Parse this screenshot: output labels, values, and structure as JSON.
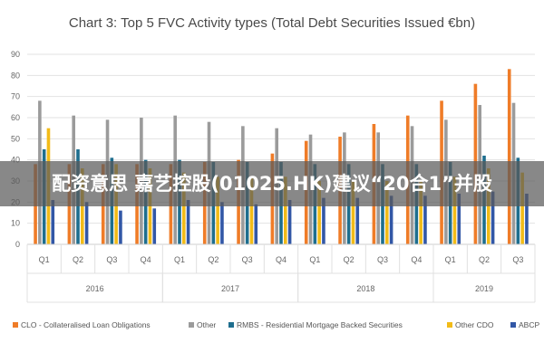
{
  "banner": {
    "text": "配资意思 嘉艺控股(01025.HK)建议“20合1”并股"
  },
  "colors": {
    "clo": "#ef7c28",
    "other": "#9b9b9b",
    "rmbs": "#1e6e8e",
    "other_cdo": "#f2bb18",
    "abcp": "#3257a6",
    "grid": "#e2e2e2",
    "title": "#4a4a4a"
  },
  "chart_data": {
    "type": "bar",
    "title": "Chart 3: Top 5 FVC Activity types (Total Debt Securities Issued €bn)",
    "xlabel": "",
    "ylabel": "",
    "ylim": [
      0,
      90
    ],
    "yticks": [
      0,
      10,
      20,
      30,
      40,
      50,
      60,
      70,
      80,
      90
    ],
    "grid": true,
    "legend_position": "bottom",
    "categories": [
      "Q1",
      "Q2",
      "Q3",
      "Q4",
      "Q1",
      "Q2",
      "Q3",
      "Q4",
      "Q1",
      "Q2",
      "Q3",
      "Q4",
      "Q1",
      "Q2",
      "Q3"
    ],
    "groups": [
      {
        "label": "2016",
        "start": 0,
        "end": 3
      },
      {
        "label": "2017",
        "start": 4,
        "end": 7
      },
      {
        "label": "2018",
        "start": 8,
        "end": 11
      },
      {
        "label": "2019",
        "start": 12,
        "end": 14
      }
    ],
    "series": [
      {
        "name": "CLO - Collateralised Loan Obligations",
        "color_key": "clo",
        "values": [
          38,
          38,
          38,
          38,
          38,
          39,
          40,
          43,
          49,
          51,
          57,
          61,
          68,
          76,
          83
        ]
      },
      {
        "name": "Other",
        "color_key": "other",
        "values": [
          68,
          61,
          59,
          60,
          61,
          58,
          56,
          55,
          52,
          53,
          53,
          56,
          59,
          66,
          67
        ]
      },
      {
        "name": "RMBS - Residential Mortgage Backed Securities",
        "color_key": "rmbs",
        "values": [
          45,
          45,
          41,
          40,
          40,
          39,
          39,
          39,
          38,
          38,
          38,
          38,
          39,
          42,
          41
        ]
      },
      {
        "name": "Other CDO",
        "color_key": "other_cdo",
        "values": [
          55,
          36,
          38,
          36,
          34,
          32,
          32,
          32,
          30,
          30,
          30,
          30,
          32,
          36,
          34
        ]
      },
      {
        "name": "ABCP",
        "color_key": "abcp",
        "values": [
          21,
          20,
          16,
          17,
          21,
          20,
          19,
          21,
          22,
          22,
          23,
          23,
          24,
          25,
          24
        ]
      }
    ]
  }
}
